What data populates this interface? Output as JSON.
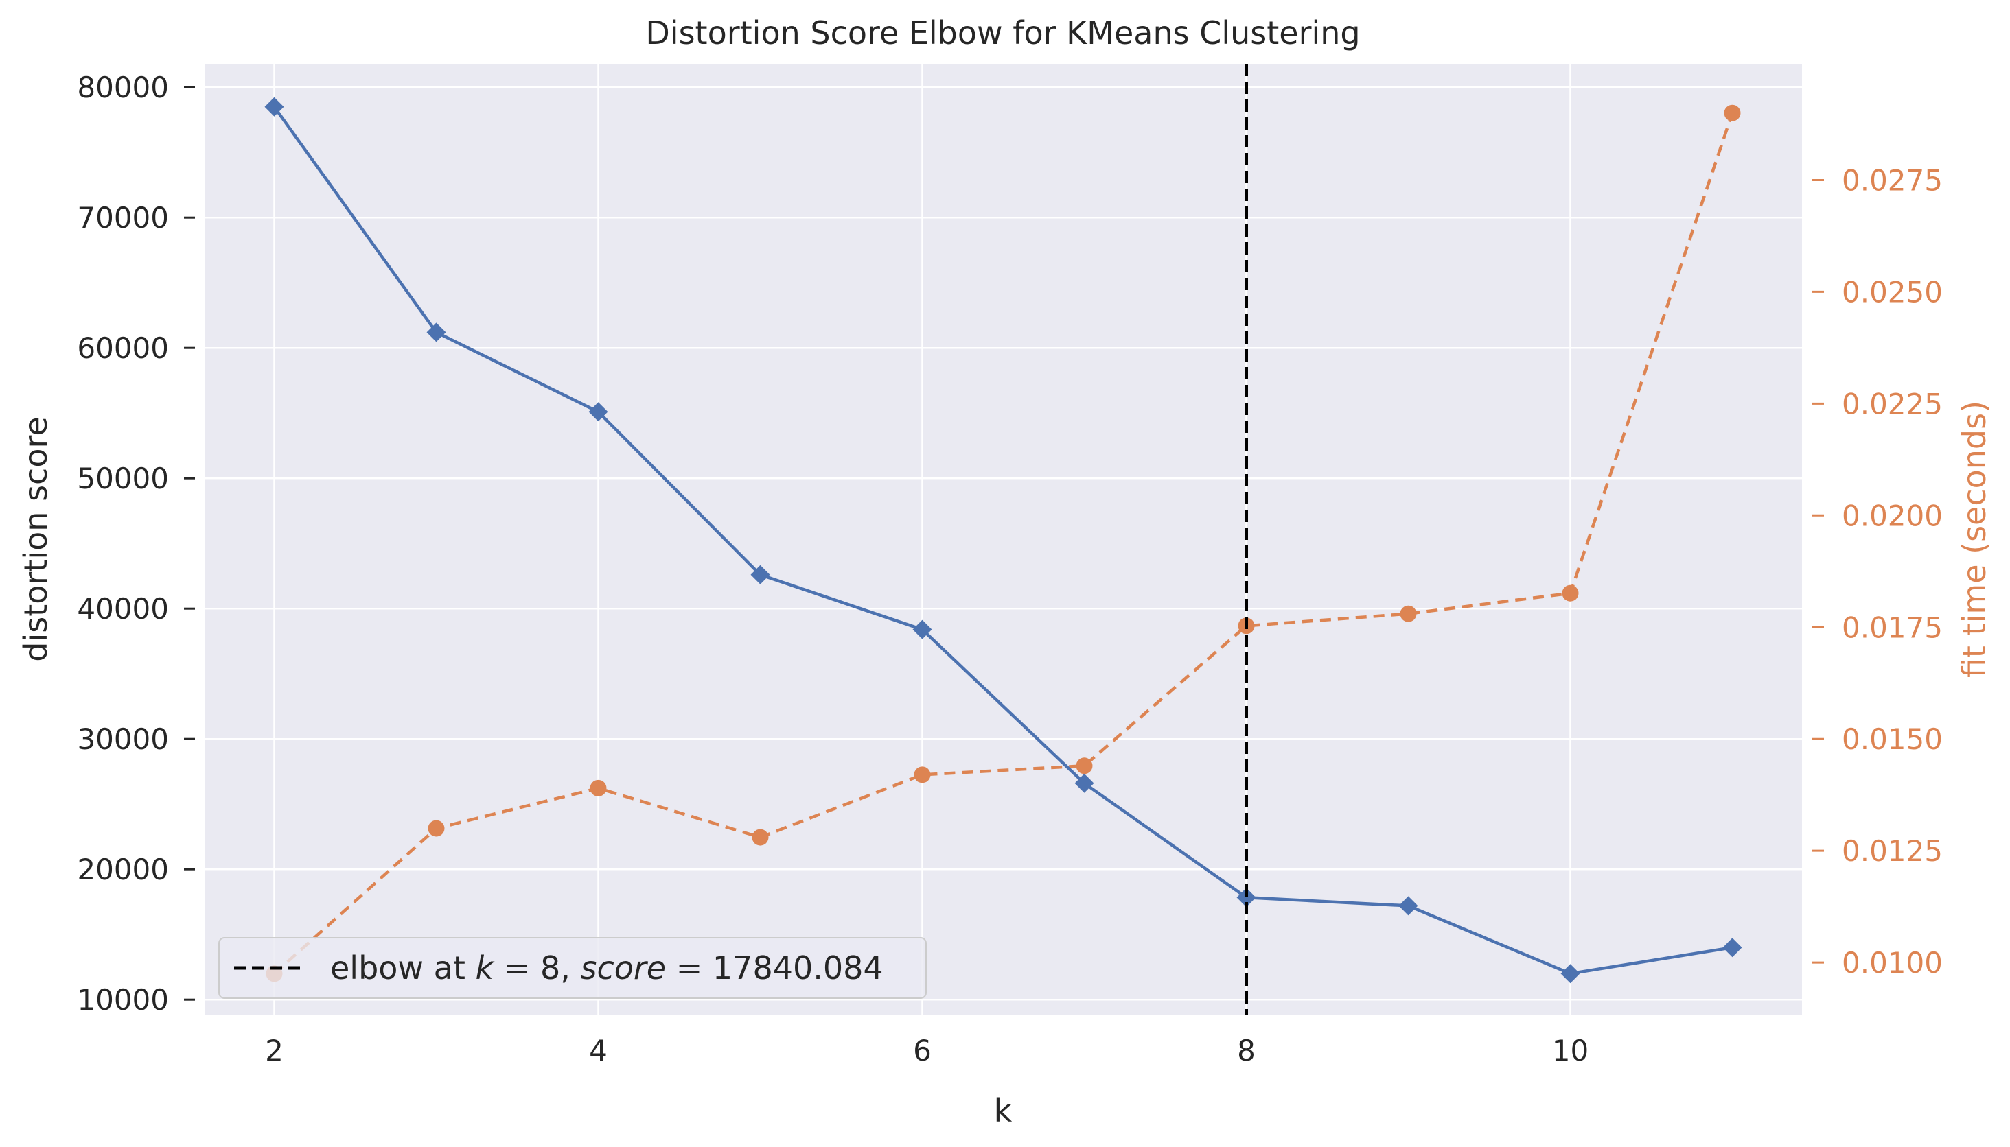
{
  "chart_data": {
    "type": "line",
    "title": "Distortion Score Elbow for KMeans Clustering",
    "xlabel": "k",
    "ylabel": "distortion score",
    "y2label": "fit time (seconds)",
    "x": [
      2,
      3,
      4,
      5,
      6,
      7,
      8,
      9,
      10,
      11
    ],
    "xlim": [
      1.57,
      11.43
    ],
    "ylim": [
      8800,
      81800
    ],
    "y2lim": [
      0.00882,
      0.0301
    ],
    "xticks": [
      "2",
      "4",
      "6",
      "8",
      "10"
    ],
    "xtick_values": [
      2,
      4,
      6,
      8,
      10
    ],
    "yticks": [
      "10000",
      "20000",
      "30000",
      "40000",
      "50000",
      "60000",
      "70000",
      "80000"
    ],
    "ytick_values": [
      10000,
      20000,
      30000,
      40000,
      50000,
      60000,
      70000,
      80000
    ],
    "y2ticks": [
      "0.0100",
      "0.0125",
      "0.0150",
      "0.0175",
      "0.0200",
      "0.0225",
      "0.0250",
      "0.0275"
    ],
    "y2tick_values": [
      0.01,
      0.0125,
      0.015,
      0.0175,
      0.02,
      0.0225,
      0.025,
      0.0275
    ],
    "series": [
      {
        "axis": "left",
        "values": [
          78500,
          61200,
          55100,
          42600,
          38400,
          26600,
          17840,
          17200,
          12000,
          14000
        ],
        "color": "#4c72b0",
        "marker": "diamond",
        "linestyle": "solid"
      },
      {
        "axis": "right",
        "values": [
          0.00975,
          0.013,
          0.0139,
          0.0128,
          0.0142,
          0.0144,
          0.01753,
          0.0178,
          0.01826,
          0.029
        ],
        "color": "#dd8452",
        "marker": "circle",
        "linestyle": "dashed"
      }
    ],
    "elbow": {
      "k": 8,
      "color": "#000000",
      "linestyle": "dashed"
    },
    "legend": {
      "placement": "lower-left",
      "prefix": "elbow at ",
      "k_symbol": "k",
      "k_value": "8",
      "score_symbol": "score",
      "score_value": "17840.084"
    },
    "grid": true,
    "background_color": "#eaeaf2",
    "grid_color": "#ffffff",
    "right_axis_color": "#dd8452"
  }
}
